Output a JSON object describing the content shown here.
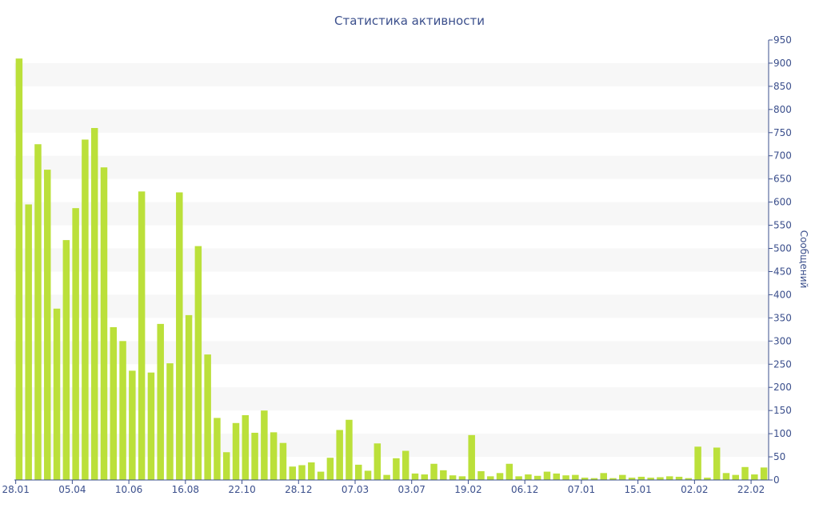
{
  "chart_data": {
    "type": "bar",
    "title": "Статистика активности",
    "ylabel": "Сообщений",
    "xlabel": "",
    "ylim": [
      0,
      950
    ],
    "y_ticks": [
      0,
      50,
      100,
      150,
      200,
      250,
      300,
      350,
      400,
      450,
      500,
      550,
      600,
      650,
      700,
      750,
      800,
      850,
      900,
      950
    ],
    "y_axis_position": "right",
    "grid": "horizontal alternating bands",
    "x_tick_labels": [
      "28.01",
      "05.04",
      "10.06",
      "16.08",
      "22.10",
      "28.12",
      "07.03",
      "03.07",
      "19.02",
      "06.12",
      "07.01",
      "15.01",
      "02.02",
      "22.02"
    ],
    "x_tick_indices": [
      0,
      6,
      12,
      18,
      24,
      30,
      36,
      42,
      48,
      54,
      60,
      66,
      72,
      78
    ],
    "values": [
      910,
      595,
      725,
      670,
      370,
      518,
      587,
      735,
      760,
      675,
      330,
      300,
      236,
      623,
      232,
      337,
      252,
      621,
      356,
      505,
      271,
      134,
      60,
      123,
      140,
      102,
      150,
      103,
      80,
      29,
      32,
      38,
      18,
      48,
      108,
      130,
      33,
      20,
      79,
      11,
      47,
      63,
      14,
      12,
      35,
      21,
      10,
      8,
      97,
      19,
      8,
      15,
      35,
      8,
      12,
      9,
      18,
      14,
      10,
      11,
      5,
      4,
      15,
      4,
      11,
      5,
      7,
      5,
      6,
      8,
      7,
      4,
      72,
      5,
      70,
      15,
      11,
      28,
      12,
      27
    ],
    "colors": {
      "bar": "#bbe03a",
      "band": "#f7f7f7",
      "axis": "#3b4f8c",
      "text": "#3b4f8c"
    }
  }
}
